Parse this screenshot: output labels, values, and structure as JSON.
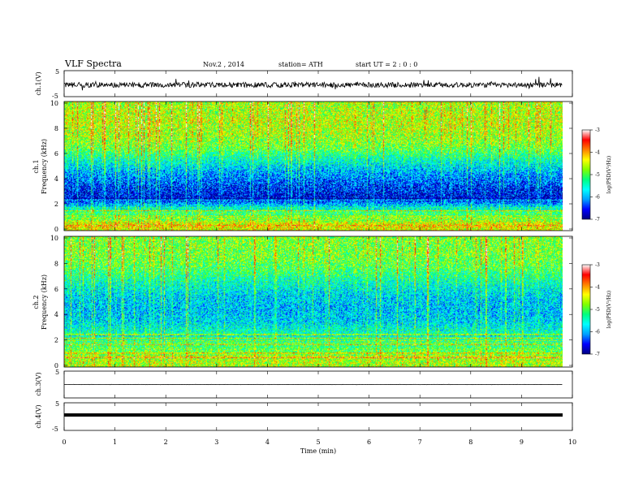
{
  "header": {
    "title": "VLF  Spectra",
    "date": "Nov.2  , 2014",
    "station": "station= ATH",
    "start_ut": "start  UT  =   2  : 0  : 0"
  },
  "panels": {
    "ch1_wave": {
      "ylabel": "ch.1(V)",
      "ticks": [
        "5",
        "-5"
      ]
    },
    "ch1_spec": {
      "ylabel_ch": "ch.1",
      "ylabel": "Frequency  (kHz)",
      "ticks": [
        "10",
        "8",
        "6",
        "4",
        "2",
        "0"
      ]
    },
    "ch2_spec": {
      "ylabel_ch": "ch.2",
      "ylabel": "Frequency  (kHz)",
      "ticks": [
        "10",
        "8",
        "6",
        "4",
        "2",
        "0"
      ]
    },
    "ch3_wave": {
      "ylabel": "ch.3(V)",
      "ticks": [
        "5"
      ]
    },
    "ch4_wave": {
      "ylabel": "ch.4(V)",
      "ticks": [
        "5",
        "-5"
      ]
    }
  },
  "colorbar": {
    "label": "log(PSD(V²/Hz)",
    "ticks": [
      "-3",
      "-4",
      "-5",
      "-6",
      "-7"
    ],
    "colors": [
      "#000080",
      "#0000ff",
      "#00a0ff",
      "#00ffff",
      "#00ff80",
      "#80ff00",
      "#ffff00",
      "#ff8000",
      "#ff0000",
      "#ffffff"
    ]
  },
  "xaxis": {
    "label": "Time  (min)",
    "ticks": [
      "0",
      "1",
      "2",
      "3",
      "4",
      "5",
      "6",
      "7",
      "8",
      "9",
      "10"
    ]
  },
  "chart_data": [
    {
      "type": "line",
      "series": "ch.1 waveform",
      "xlabel": "Time  (min)",
      "ylabel": "ch.1(V)",
      "xlim": [
        0,
        10
      ],
      "ylim": [
        -5,
        5
      ],
      "data_end_min": 9.8,
      "approx_level": -0.5,
      "approx_amplitude": 2.0
    },
    {
      "type": "heatmap",
      "title": "ch.1",
      "xlabel": "Time  (min)",
      "ylabel": "Frequency  (kHz)",
      "xlim": [
        0,
        10
      ],
      "ylim": [
        0,
        10
      ],
      "colorscale_label": "log(PSD(V²/Hz)",
      "color_range": [
        -7,
        -3
      ],
      "data_end_min": 9.8,
      "approx_log_psd_by_frequency": {
        "frequency_khz": [
          0.5,
          1.5,
          2.5,
          3.5,
          4.5,
          5.5,
          6.5,
          7.5,
          8.5,
          9.5
        ],
        "log_psd": [
          -4.5,
          -5.3,
          -6.8,
          -6.5,
          -6.1,
          -5.6,
          -5.0,
          -4.8,
          -4.7,
          -4.8
        ]
      }
    },
    {
      "type": "heatmap",
      "title": "ch.2",
      "xlabel": "Time  (min)",
      "ylabel": "Frequency  (kHz)",
      "xlim": [
        0,
        10
      ],
      "ylim": [
        0,
        10
      ],
      "colorscale_label": "log(PSD(V²/Hz)",
      "color_range": [
        -7,
        -3
      ],
      "data_end_min": 9.8,
      "approx_log_psd_by_frequency": {
        "frequency_khz": [
          0.5,
          1.5,
          2.5,
          3.5,
          4.5,
          5.5,
          6.5,
          7.5,
          8.5,
          9.5
        ],
        "log_psd": [
          -4.7,
          -5.2,
          -5.5,
          -5.9,
          -6.0,
          -5.9,
          -5.6,
          -5.2,
          -5.0,
          -5.0
        ]
      }
    },
    {
      "type": "line",
      "series": "ch.3 waveform",
      "xlabel": "Time  (min)",
      "ylabel": "ch.3(V)",
      "xlim": [
        0,
        10
      ],
      "data_end_min": 9.8,
      "approx_level": 0.0,
      "approx_amplitude": 0.1
    },
    {
      "type": "line",
      "series": "ch.4 waveform",
      "xlabel": "Time  (min)",
      "ylabel": "ch.4(V)",
      "xlim": [
        0,
        10
      ],
      "ylim": [
        -5,
        5
      ],
      "data_end_min": 9.8,
      "approx_level": 0.0,
      "approx_amplitude": 0.1
    }
  ]
}
